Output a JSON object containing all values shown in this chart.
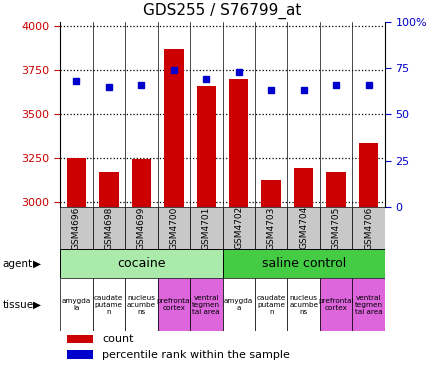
{
  "title": "GDS255 / S76799_at",
  "samples": [
    "GSM4696",
    "GSM4698",
    "GSM4699",
    "GSM4700",
    "GSM4701",
    "GSM4702",
    "GSM4703",
    "GSM4704",
    "GSM4705",
    "GSM4706"
  ],
  "counts": [
    3250,
    3175,
    3245,
    3870,
    3660,
    3700,
    3130,
    3195,
    3175,
    3335
  ],
  "percentiles": [
    68,
    65,
    66,
    74,
    69,
    73,
    63,
    63,
    66,
    66
  ],
  "ylim_left": [
    2975,
    4025
  ],
  "ylim_right": [
    0,
    100
  ],
  "yticks_left": [
    3000,
    3250,
    3500,
    3750,
    4000
  ],
  "yticks_right": [
    0,
    25,
    50,
    75,
    100
  ],
  "bar_color": "#cc0000",
  "dot_color": "#0000cc",
  "agent_cocaine_color": "#aaeaaa",
  "agent_saline_color": "#44cc44",
  "tissue_white_color": "#ffffff",
  "tissue_pink_color": "#dd66dd",
  "sample_bg_color": "#c8c8c8",
  "tissue_labels": [
    "amygda\nla",
    "caudate\nputame\nn",
    "nucleus\nacumbe\nns",
    "prefrontal\ncortex",
    "ventral\ntegmen\ntal area",
    "amygda\na",
    "caudate\nputame\nn",
    "nucleus\nacumbe\nns",
    "prefrontal\ncortex",
    "ventral\ntegmen\ntal area"
  ],
  "tissue_colors": [
    "white",
    "white",
    "white",
    "pink",
    "pink",
    "white",
    "white",
    "white",
    "pink",
    "pink"
  ]
}
